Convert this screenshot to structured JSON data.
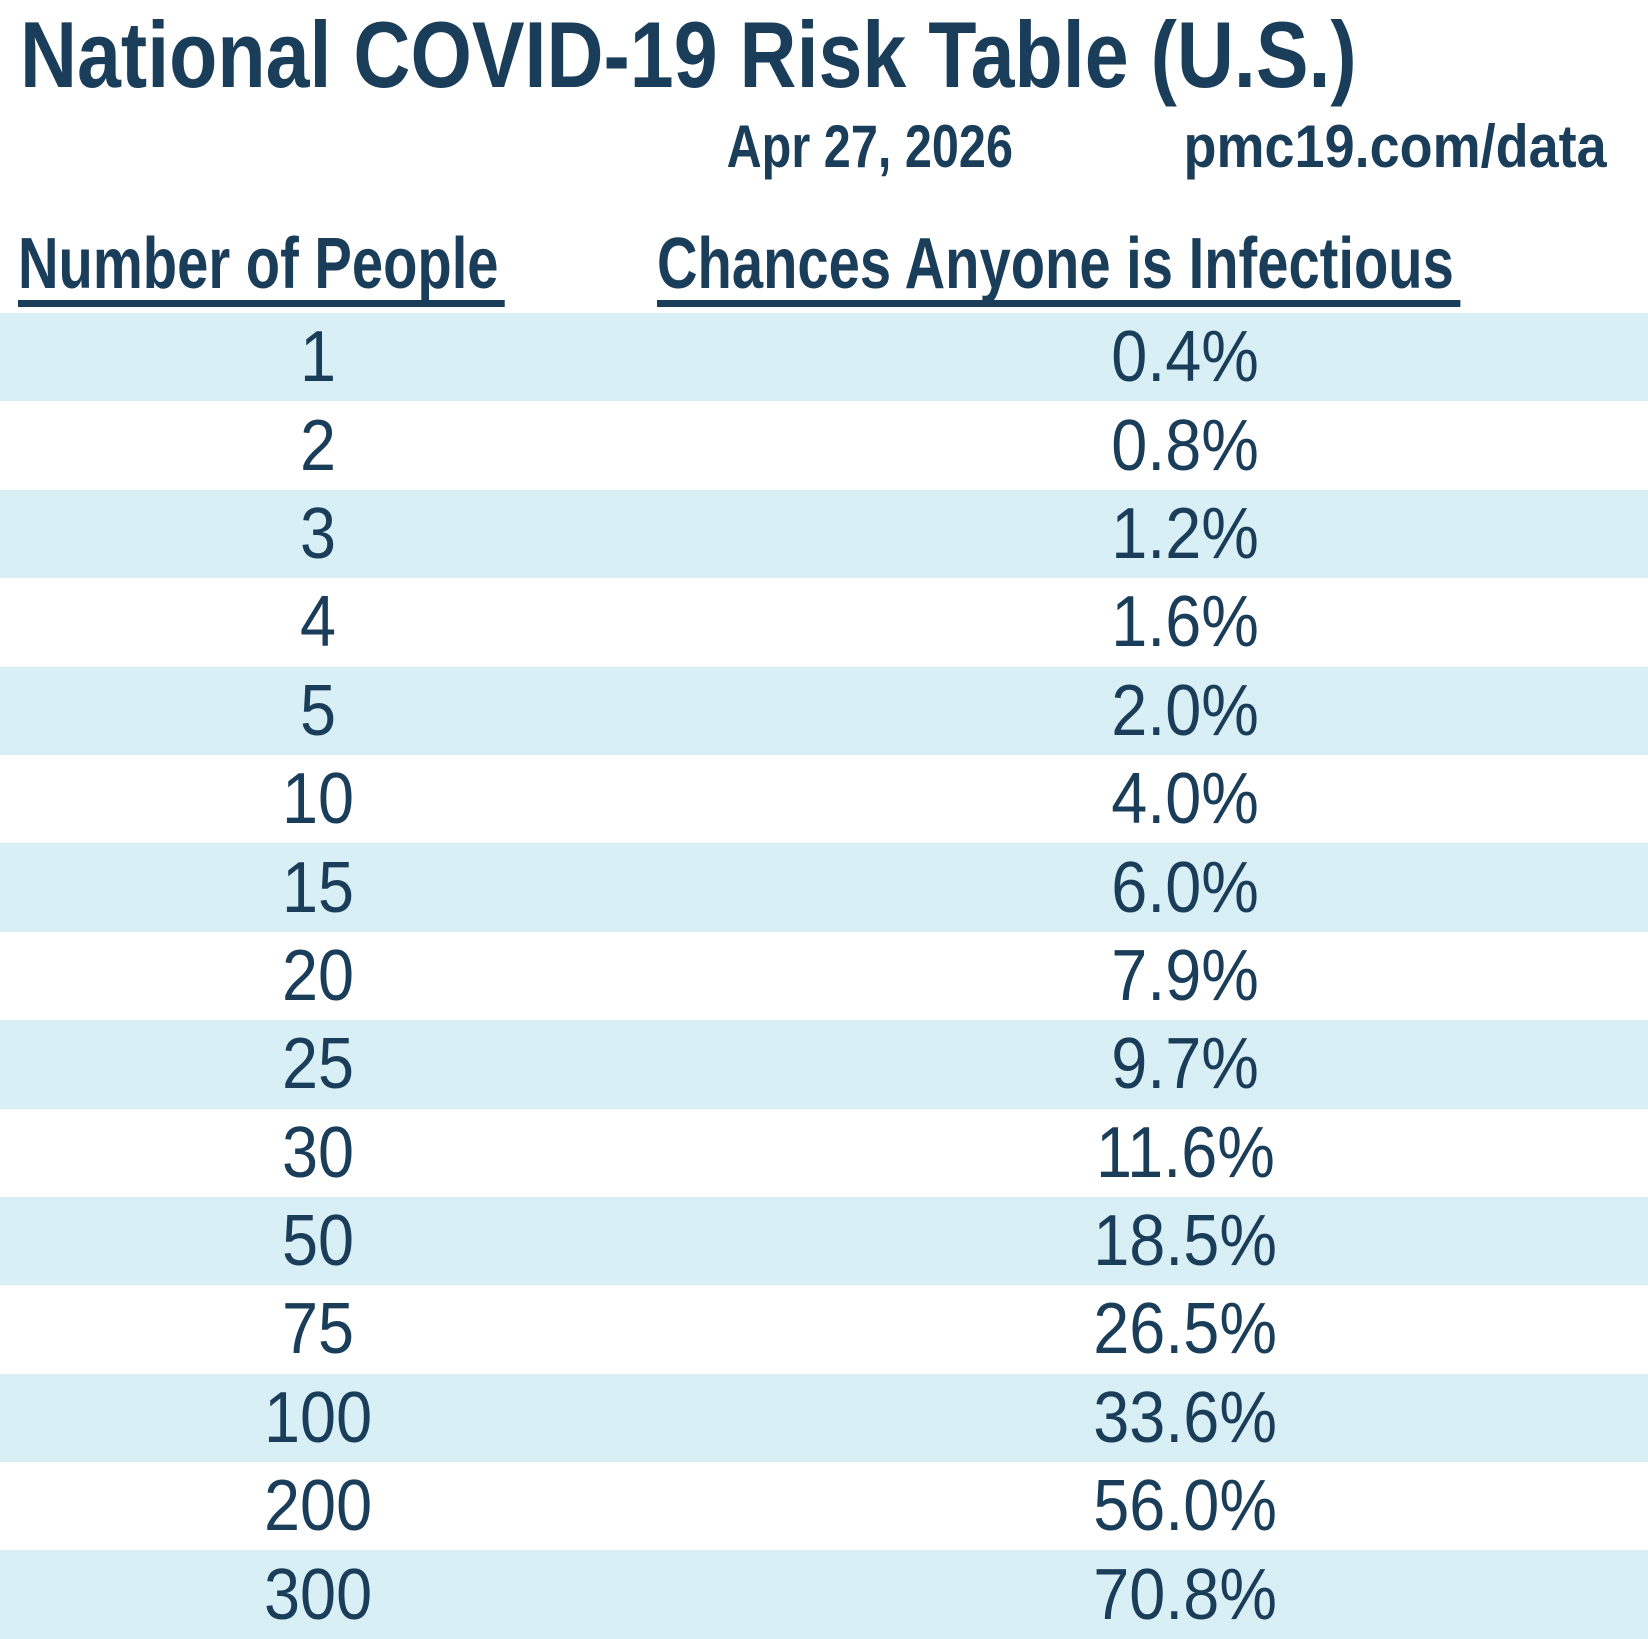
{
  "page": {
    "title": "National COVID-19 Risk Table (U.S.)",
    "date": "Apr 27, 2026",
    "source_url": "pmc19.com/data"
  },
  "table": {
    "col1_header": "Number of People",
    "col2_header": "Chances Anyone is Infectious",
    "rows": [
      {
        "people": "1",
        "chance": "0.4%"
      },
      {
        "people": "2",
        "chance": "0.8%"
      },
      {
        "people": "3",
        "chance": "1.2%"
      },
      {
        "people": "4",
        "chance": "1.6%"
      },
      {
        "people": "5",
        "chance": "2.0%"
      },
      {
        "people": "10",
        "chance": "4.0%"
      },
      {
        "people": "15",
        "chance": "6.0%"
      },
      {
        "people": "20",
        "chance": "7.9%"
      },
      {
        "people": "25",
        "chance": "9.7%"
      },
      {
        "people": "30",
        "chance": "11.6%"
      },
      {
        "people": "50",
        "chance": "18.5%"
      },
      {
        "people": "75",
        "chance": "26.5%"
      },
      {
        "people": "100",
        "chance": "33.6%"
      },
      {
        "people": "200",
        "chance": "56.0%"
      },
      {
        "people": "300",
        "chance": "70.8%"
      }
    ]
  },
  "colors": {
    "text_navy": "#1a3e5a",
    "row_stripe_blue": "#d8eff5",
    "background": "#ffffff"
  },
  "chart_data": {
    "type": "table",
    "title": "National COVID-19 Risk Table (U.S.)",
    "date": "Apr 27, 2026",
    "source": "pmc19.com/data",
    "columns": [
      "Number of People",
      "Chances Anyone is Infectious"
    ],
    "people": [
      1,
      2,
      3,
      4,
      5,
      10,
      15,
      20,
      25,
      30,
      50,
      75,
      100,
      200,
      300
    ],
    "chances_percent": [
      0.4,
      0.8,
      1.2,
      1.6,
      2.0,
      4.0,
      6.0,
      7.9,
      9.7,
      11.6,
      18.5,
      26.5,
      33.6,
      56.0,
      70.8
    ],
    "layout_hints": {
      "striped_rows": true,
      "stripe_color": "#d8eff5",
      "values_alignment": "center"
    }
  }
}
